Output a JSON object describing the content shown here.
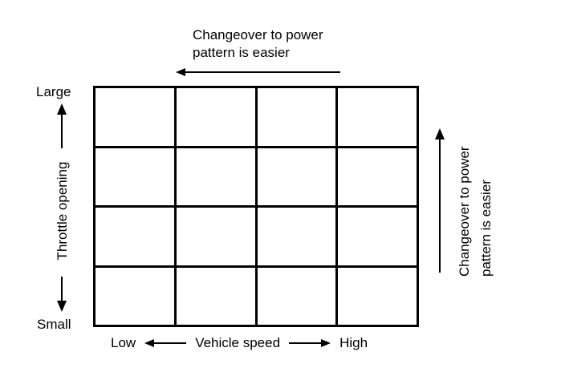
{
  "colors": {
    "ink": "#000000",
    "background": "#ffffff"
  },
  "grid": {
    "rows": 4,
    "cols": 4
  },
  "annotations": {
    "top": {
      "line1": "Changeover to power",
      "line2": "pattern is easier"
    },
    "right": {
      "line1": "Changeover to power",
      "line2": "pattern is easier"
    }
  },
  "y_axis": {
    "label": "Throttle opening",
    "max_label": "Large",
    "min_label": "Small"
  },
  "x_axis": {
    "label": "Vehicle speed",
    "min_label": "Low",
    "max_label": "High"
  }
}
